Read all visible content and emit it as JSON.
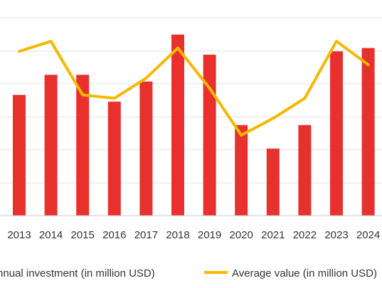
{
  "chart_data": {
    "type": "bar",
    "categories": [
      "2013",
      "2014",
      "2015",
      "2016",
      "2017",
      "2018",
      "2019",
      "2020",
      "2021",
      "2022",
      "2023",
      "2024"
    ],
    "series": [
      {
        "name": "Annual investment (in million USD)",
        "kind": "bar",
        "color": "#e8302d",
        "values": [
          36,
          42,
          42,
          34,
          40,
          54,
          48,
          27,
          20,
          27,
          49,
          50
        ]
      },
      {
        "name": "Average value (in million USD)",
        "kind": "line",
        "color": "#f5b800",
        "values": [
          49,
          52,
          36,
          35,
          41,
          50,
          38,
          24,
          29,
          35,
          52,
          45
        ]
      }
    ],
    "ylim": [
      0,
      66
    ],
    "grid": true,
    "legend": "bottom"
  },
  "legend": {
    "bar_label": "Annual investment (in million USD)",
    "line_label": "Average value (in million USD)"
  }
}
